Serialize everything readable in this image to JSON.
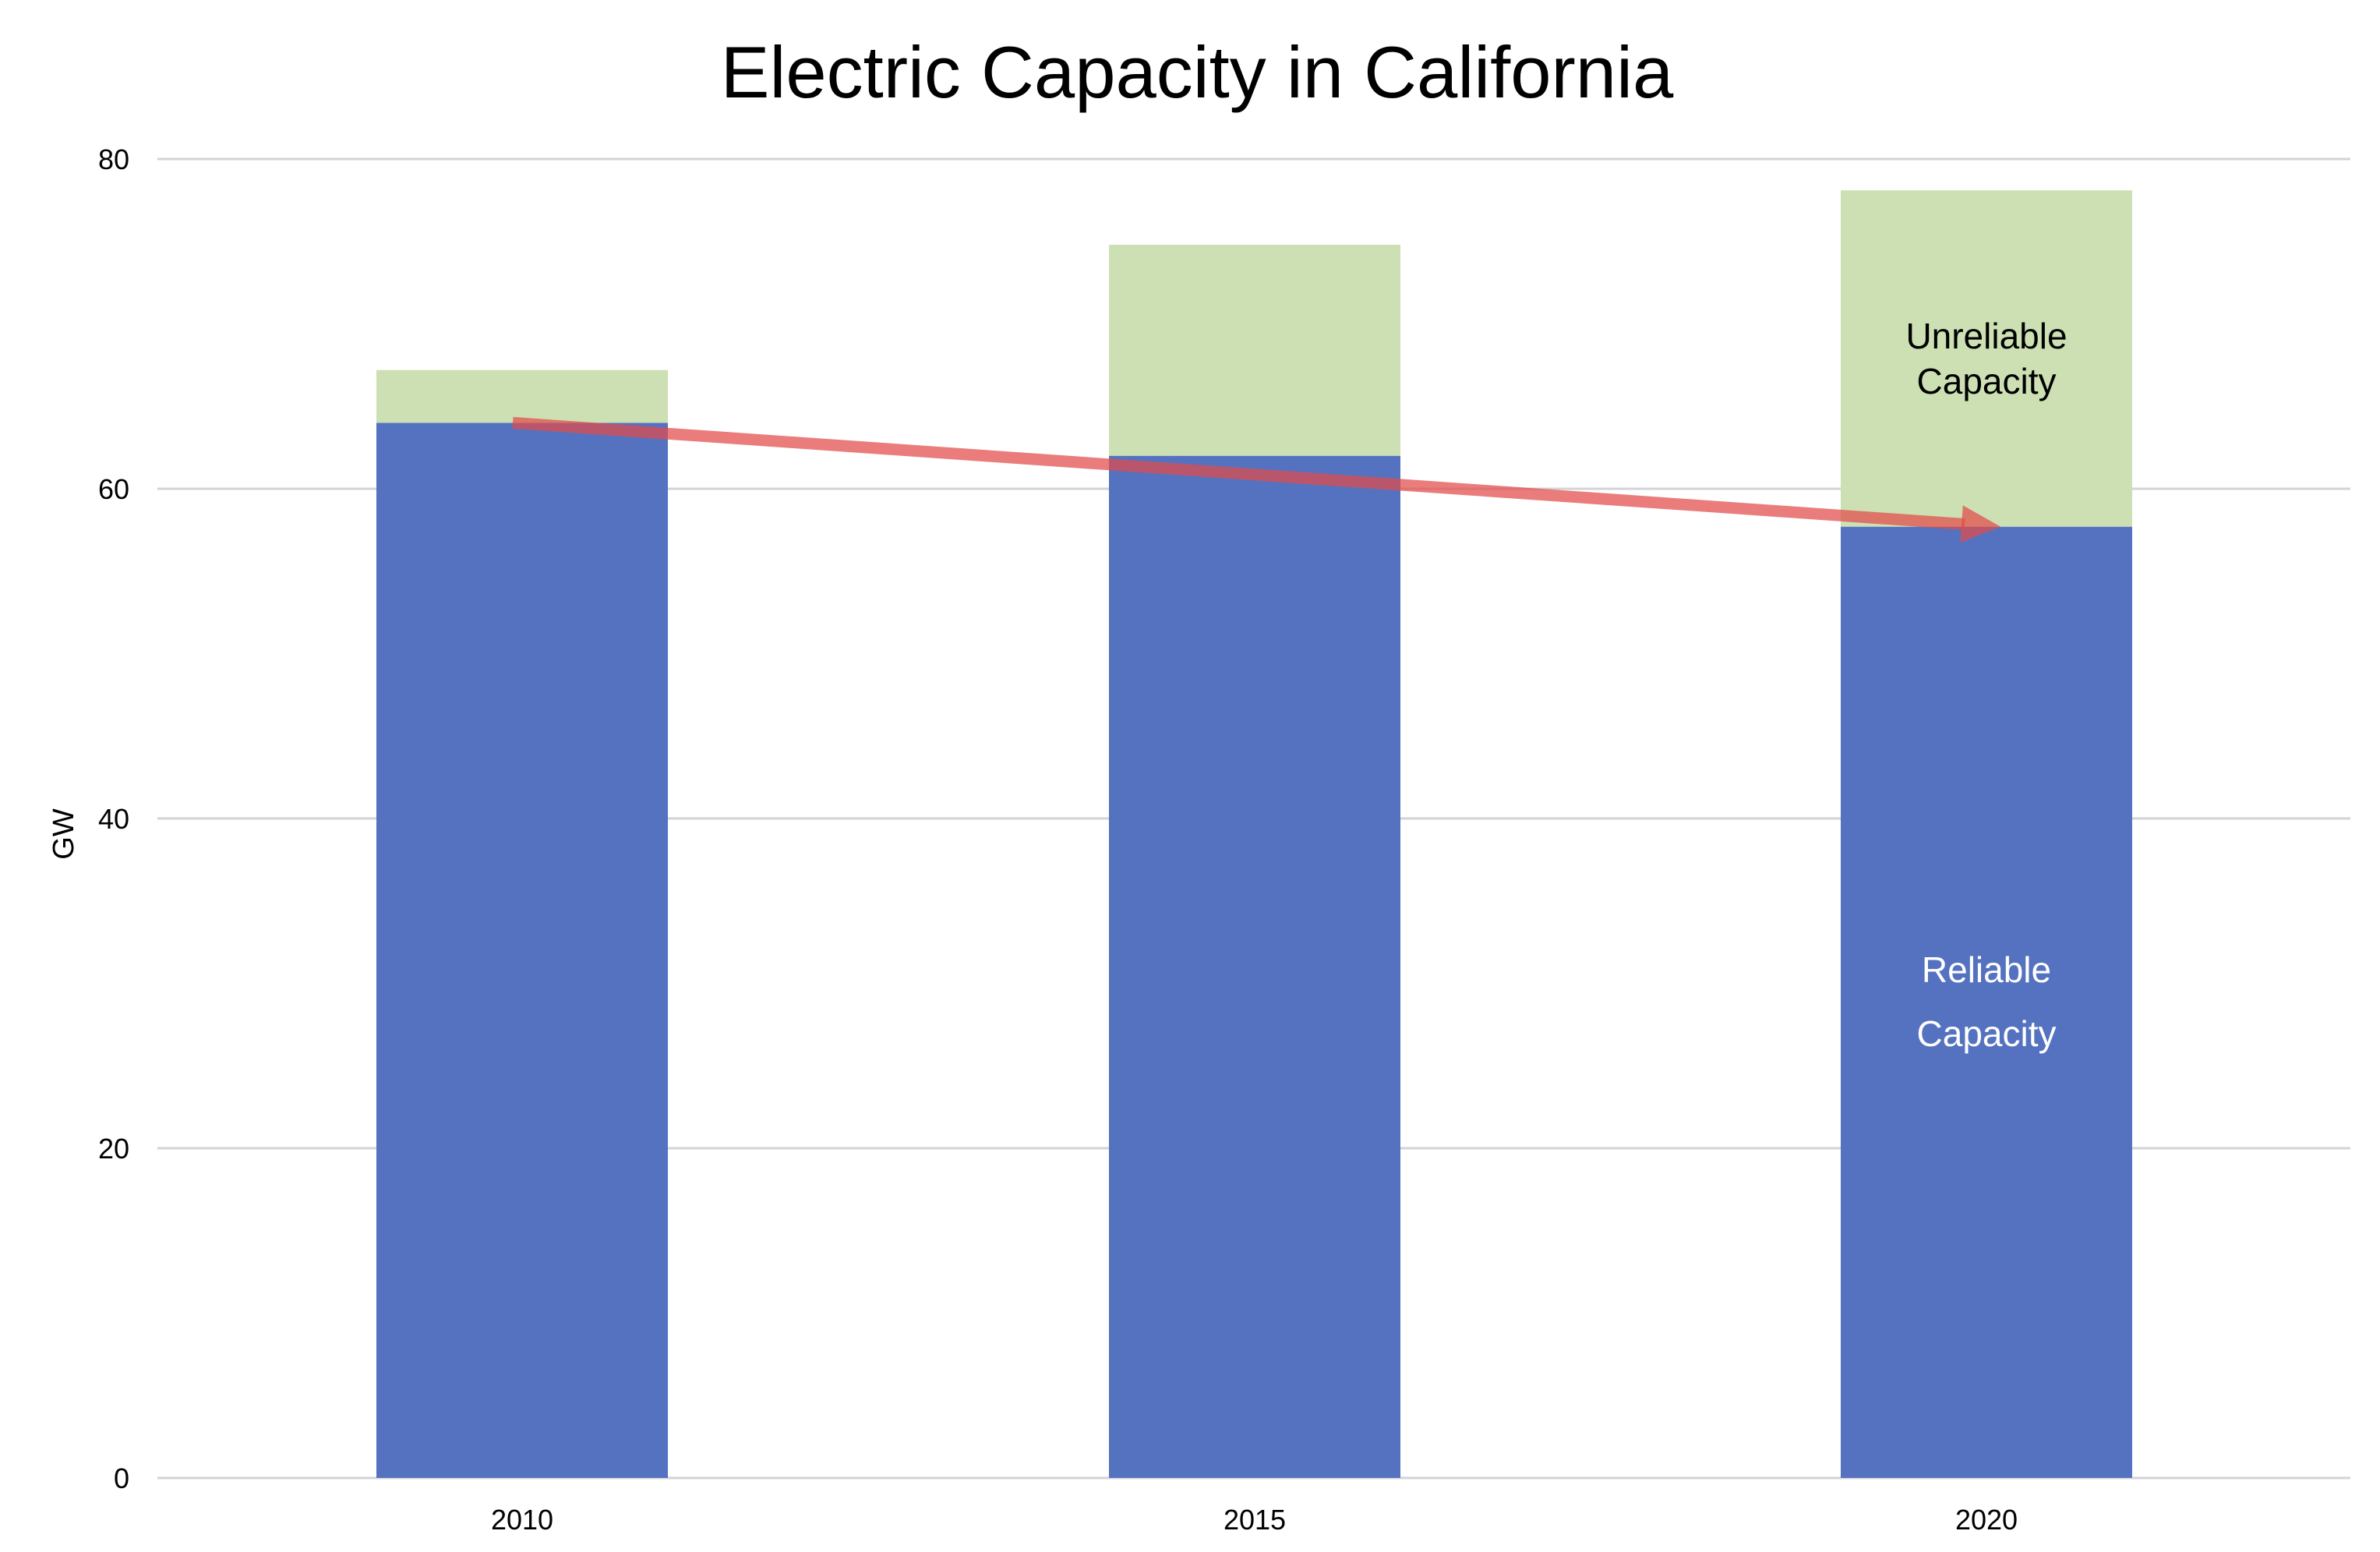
{
  "chart_data": {
    "type": "bar",
    "stacked": true,
    "title": "Electric Capacity in California",
    "xlabel": "",
    "ylabel": "GW",
    "categories": [
      "2010",
      "2015",
      "2020"
    ],
    "series": [
      {
        "name": "Reliable Capacity",
        "values": [
          64,
          62,
          57.7
        ],
        "color": "#5572c0"
      },
      {
        "name": "Unreliable Capacity",
        "values": [
          3.2,
          12.8,
          20.4
        ],
        "color": "#cde0b4"
      }
    ],
    "ylim": [
      0,
      80
    ],
    "yticks": [
      0,
      20,
      40,
      60,
      80
    ],
    "grid": true,
    "annotations": {
      "unreliable_label": [
        "Unreliable",
        "Capacity"
      ],
      "reliable_label": [
        "Reliable",
        "Capacity"
      ],
      "trend_arrow": {
        "from_category": "2010",
        "from_value": 64,
        "to_category": "2020",
        "to_value": 57.7,
        "color": "#e24b4a"
      }
    },
    "colors": {
      "grid": "#d3d3d8",
      "background": "#ffffff"
    }
  }
}
